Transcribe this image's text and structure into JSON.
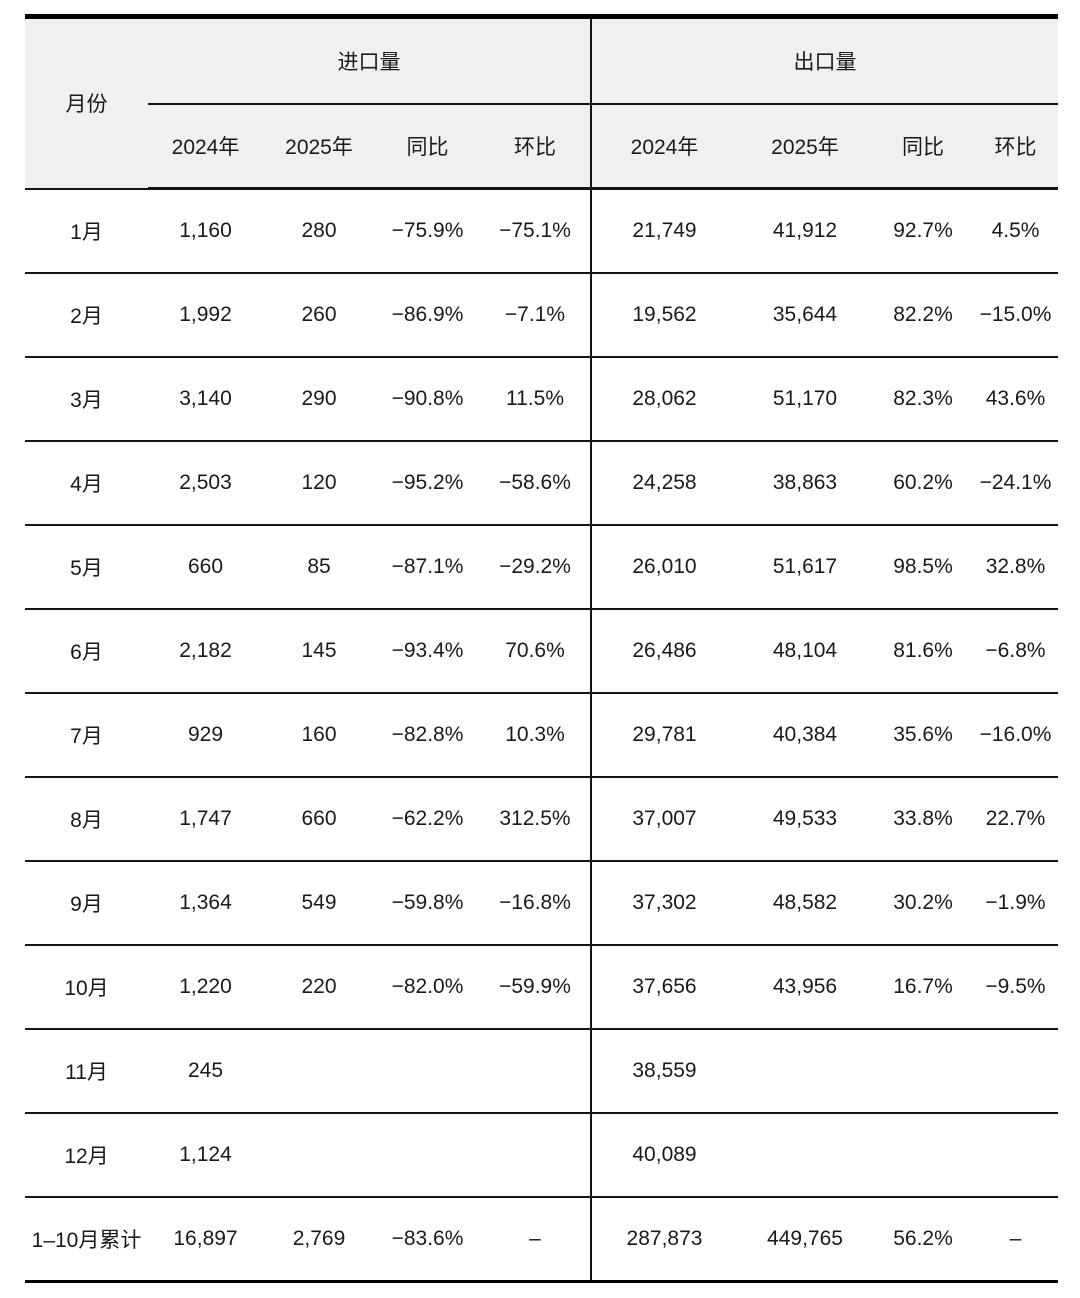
{
  "styles": {
    "header_bg": "#f0f0f0",
    "border_color": "#141414",
    "text_color": "#1a1a1a"
  },
  "chart_data": {
    "type": "table",
    "row_header": "月份",
    "groups": [
      {
        "label": "进口量",
        "sub_columns": [
          "2024年",
          "2025年",
          "同比",
          "环比"
        ]
      },
      {
        "label": "出口量",
        "sub_columns": [
          "2024年",
          "2025年",
          "同比",
          "环比"
        ]
      }
    ],
    "rows": [
      {
        "month": "1月",
        "import": [
          "1,160",
          "280",
          "−75.9%",
          "−75.1%"
        ],
        "export": [
          "21,749",
          "41,912",
          "92.7%",
          "4.5%"
        ]
      },
      {
        "month": "2月",
        "import": [
          "1,992",
          "260",
          "−86.9%",
          "−7.1%"
        ],
        "export": [
          "19,562",
          "35,644",
          "82.2%",
          "−15.0%"
        ]
      },
      {
        "month": "3月",
        "import": [
          "3,140",
          "290",
          "−90.8%",
          "11.5%"
        ],
        "export": [
          "28,062",
          "51,170",
          "82.3%",
          "43.6%"
        ]
      },
      {
        "month": "4月",
        "import": [
          "2,503",
          "120",
          "−95.2%",
          "−58.6%"
        ],
        "export": [
          "24,258",
          "38,863",
          "60.2%",
          "−24.1%"
        ]
      },
      {
        "month": "5月",
        "import": [
          "660",
          "85",
          "−87.1%",
          "−29.2%"
        ],
        "export": [
          "26,010",
          "51,617",
          "98.5%",
          "32.8%"
        ]
      },
      {
        "month": "6月",
        "import": [
          "2,182",
          "145",
          "−93.4%",
          "70.6%"
        ],
        "export": [
          "26,486",
          "48,104",
          "81.6%",
          "−6.8%"
        ]
      },
      {
        "month": "7月",
        "import": [
          "929",
          "160",
          "−82.8%",
          "10.3%"
        ],
        "export": [
          "29,781",
          "40,384",
          "35.6%",
          "−16.0%"
        ]
      },
      {
        "month": "8月",
        "import": [
          "1,747",
          "660",
          "−62.2%",
          "312.5%"
        ],
        "export": [
          "37,007",
          "49,533",
          "33.8%",
          "22.7%"
        ]
      },
      {
        "month": "9月",
        "import": [
          "1,364",
          "549",
          "−59.8%",
          "−16.8%"
        ],
        "export": [
          "37,302",
          "48,582",
          "30.2%",
          "−1.9%"
        ]
      },
      {
        "month": "10月",
        "import": [
          "1,220",
          "220",
          "−82.0%",
          "−59.9%"
        ],
        "export": [
          "37,656",
          "43,956",
          "16.7%",
          "−9.5%"
        ]
      },
      {
        "month": "11月",
        "import": [
          "245",
          "",
          "",
          ""
        ],
        "export": [
          "38,559",
          "",
          "",
          ""
        ]
      },
      {
        "month": "12月",
        "import": [
          "1,124",
          "",
          "",
          ""
        ],
        "export": [
          "40,089",
          "",
          "",
          ""
        ]
      },
      {
        "month": "1–10月累计",
        "import": [
          "16,897",
          "2,769",
          "−83.6%",
          "–"
        ],
        "export": [
          "287,873",
          "449,765",
          "56.2%",
          "–"
        ]
      }
    ]
  }
}
